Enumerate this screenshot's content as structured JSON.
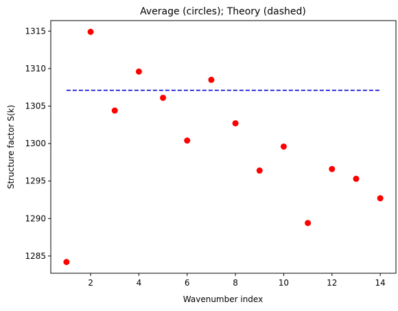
{
  "chart_data": {
    "type": "scatter",
    "title": "Average (circles); Theory (dashed)",
    "xlabel": "Wavenumber index",
    "ylabel": "Structure factor S(k)",
    "xlim": [
      0.35,
      14.65
    ],
    "ylim": [
      1282.7,
      1316.4
    ],
    "xticks": [
      "2",
      "4",
      "6",
      "8",
      "10",
      "12",
      "14"
    ],
    "yticks": [
      "1285",
      "1290",
      "1295",
      "1300",
      "1305",
      "1310",
      "1315"
    ],
    "grid": false,
    "series": [
      {
        "marker": "circle",
        "color": "#ff0000",
        "x": [
          1,
          2,
          3,
          4,
          5,
          6,
          7,
          8,
          9,
          10,
          11,
          12,
          13,
          14
        ],
        "y": [
          1284.2,
          1314.9,
          1304.4,
          1309.6,
          1306.1,
          1300.4,
          1308.5,
          1302.7,
          1296.4,
          1299.6,
          1289.4,
          1296.6,
          1295.3,
          1292.7
        ]
      },
      {
        "line_style": "dashed",
        "color": "#0000cc",
        "x": [
          1,
          14
        ],
        "y": [
          1307.1,
          1307.1
        ]
      }
    ]
  }
}
